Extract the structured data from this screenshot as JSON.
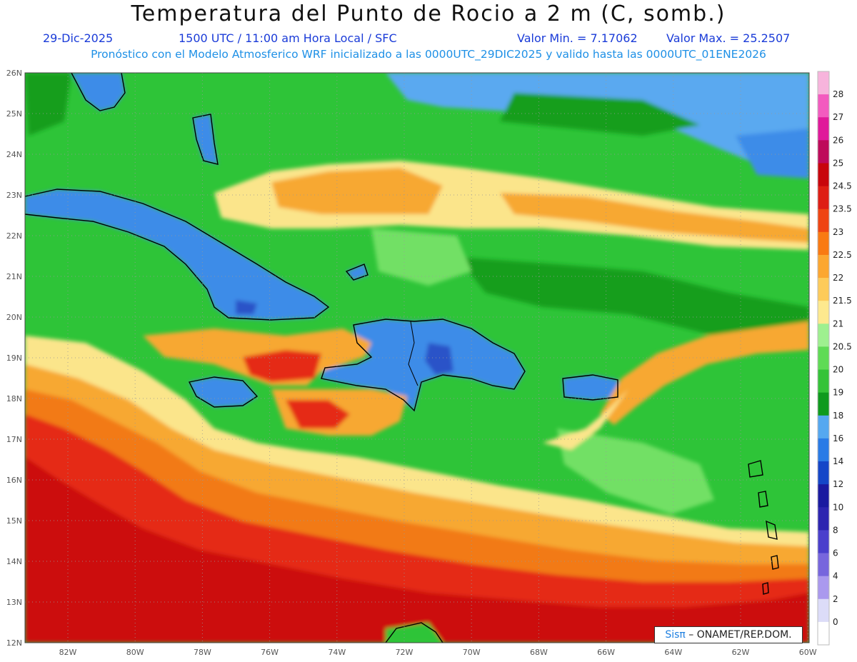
{
  "title": "Temperatura del Punto de Rocio a 2 m (C, somb.)",
  "date": "29-Dic-2025",
  "time_info": "1500 UTC / 11:00 am Hora Local / SFC",
  "value_min": "Valor Min. = 7.17062",
  "value_max": "Valor Max. = 25.2507",
  "forecast_info": "Pronóstico con el Modelo Atmosferico WRF inicializado a las 0000UTC_29DIC2025 y valido hasta las  0000UTC_01ENE2026",
  "credit": {
    "brand": "Sisπ",
    "rest": " – ONAMET/REP.DOM."
  },
  "lat_labels": [
    "26N",
    "25N",
    "24N",
    "23N",
    "22N",
    "21N",
    "20N",
    "19N",
    "18N",
    "17N",
    "16N",
    "15N",
    "14N",
    "13N",
    "12N"
  ],
  "lon_labels": [
    "82W",
    "80W",
    "78W",
    "76W",
    "74W",
    "72W",
    "70W",
    "68W",
    "66W",
    "64W",
    "62W",
    "60W"
  ],
  "colorbar": {
    "levels": [
      "0",
      "2",
      "4",
      "6",
      "8",
      "10",
      "12",
      "14",
      "16",
      "18",
      "19",
      "20",
      "20.5",
      "21",
      "21.5",
      "22",
      "22.5",
      "23",
      "23.5",
      "24.5",
      "25",
      "26",
      "27",
      "28"
    ],
    "colors": [
      "#ffffff",
      "#dcdcf8",
      "#aa99ee",
      "#7766dd",
      "#4a3fcc",
      "#2d25b0",
      "#1a1aa0",
      "#1446c8",
      "#2a7be6",
      "#55a8f0",
      "#0f9a1e",
      "#35c338",
      "#5fdb55",
      "#9ef08f",
      "#fde98e",
      "#fdcb5a",
      "#fca730",
      "#f97a12",
      "#ef4412",
      "#de1e14",
      "#c8050c",
      "#be0a5a",
      "#e0199a",
      "#f35bbf",
      "#f7b4dc"
    ]
  },
  "map_colors": {
    "ocean_base": "#2ec438",
    "dark_green": "#129e1c",
    "light_green": "#72e065",
    "blue": "#3e8ce8",
    "light_blue": "#5aa9f0",
    "dark_blue": "#2a52c8",
    "yellow": "#fbe58b",
    "orange": "#f7a832",
    "dark_orange": "#f27a18",
    "red": "#e52a18",
    "dark_red": "#cc0a0a"
  }
}
